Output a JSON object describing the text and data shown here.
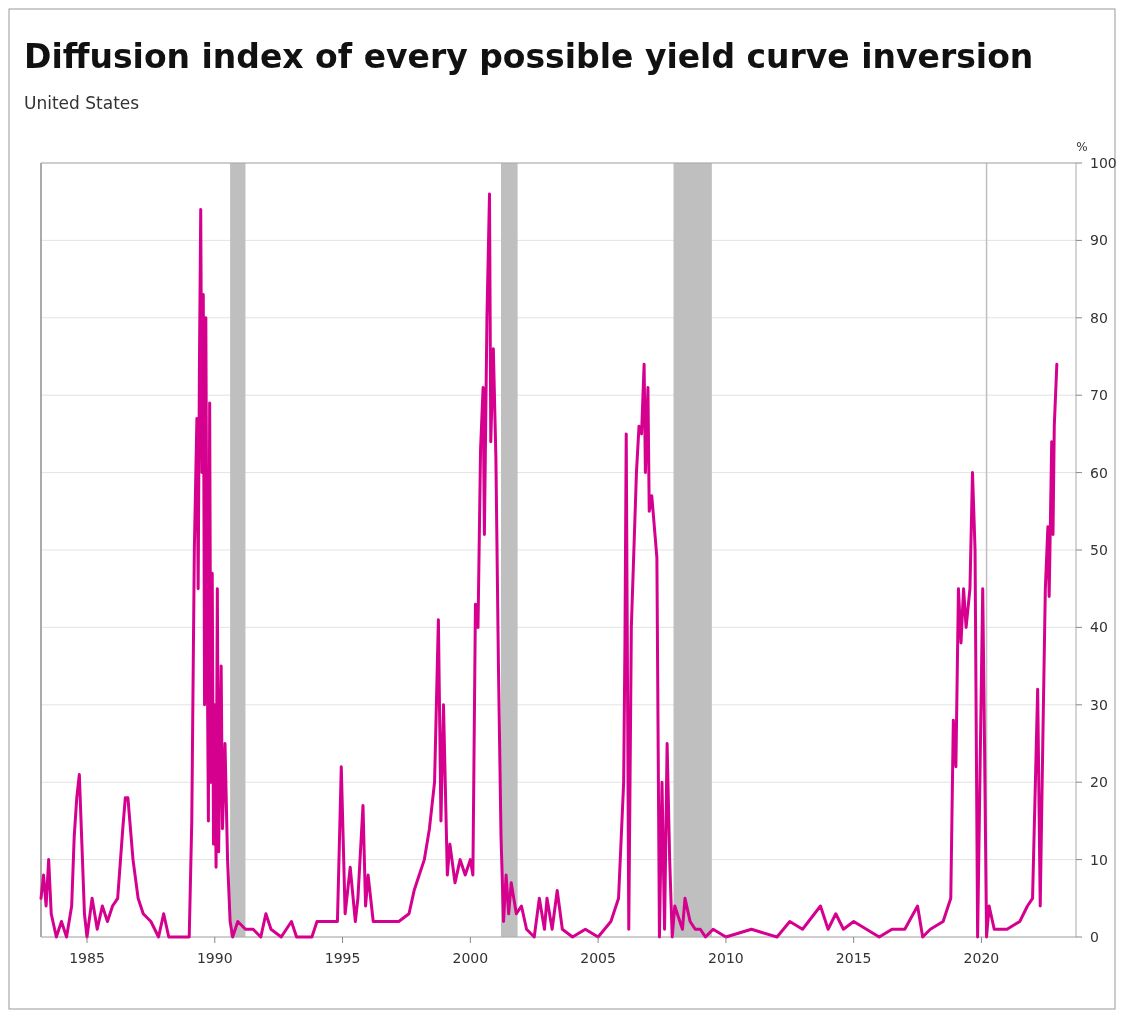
{
  "chart_data": {
    "type": "line",
    "title": "Diffusion index of every possible yield curve inversion",
    "subtitle": "United States",
    "ylabel": "%",
    "xlim": [
      1983.2,
      2023.7
    ],
    "xticks": [
      1985,
      1990,
      1995,
      2000,
      2005,
      2010,
      2015,
      2020
    ],
    "ylim": [
      0,
      100
    ],
    "yticks": [
      0,
      10,
      20,
      30,
      40,
      50,
      60,
      70,
      80,
      90,
      100
    ],
    "grid": "y",
    "bands": [
      {
        "axis": "x",
        "from": 1990.6,
        "to": 1991.2,
        "color": "#bfbfbf"
      },
      {
        "axis": "x",
        "from": 2001.2,
        "to": 2001.85,
        "color": "#bfbfbf"
      },
      {
        "axis": "x",
        "from": 2007.95,
        "to": 2009.45,
        "color": "#bfbfbf"
      }
    ],
    "ref_lines": [
      {
        "axis": "x",
        "value": 2020.2,
        "color": "#bfbfbf"
      }
    ],
    "series": [
      {
        "color": "#d6008f",
        "x": [
          1983.2,
          1983.3,
          1983.4,
          1983.5,
          1983.6,
          1983.8,
          1984.0,
          1984.2,
          1984.4,
          1984.5,
          1984.6,
          1984.7,
          1984.8,
          1984.9,
          1985.0,
          1985.2,
          1985.4,
          1985.6,
          1985.8,
          1986.0,
          1986.2,
          1986.4,
          1986.5,
          1986.6,
          1986.8,
          1987.0,
          1987.2,
          1987.5,
          1987.8,
          1988.0,
          1988.2,
          1989.0,
          1989.1,
          1989.2,
          1989.3,
          1989.35,
          1989.4,
          1989.45,
          1989.5,
          1989.55,
          1989.6,
          1989.65,
          1989.7,
          1989.75,
          1989.8,
          1989.85,
          1989.9,
          1989.95,
          1990.0,
          1990.05,
          1990.1,
          1990.15,
          1990.25,
          1990.3,
          1990.4,
          1990.5,
          1990.6,
          1990.7,
          1990.9,
          1991.2,
          1991.5,
          1991.8,
          1992.0,
          1992.2,
          1992.6,
          1993.0,
          1993.2,
          1993.8,
          1994.0,
          1994.8,
          1994.95,
          1995.1,
          1995.3,
          1995.5,
          1995.6,
          1995.8,
          1995.9,
          1996.0,
          1996.2,
          1996.8,
          1997.2,
          1997.6,
          1997.8,
          1998.0,
          1998.2,
          1998.4,
          1998.6,
          1998.75,
          1998.85,
          1998.95,
          1999.1,
          1999.2,
          1999.4,
          1999.6,
          1999.8,
          2000.0,
          2000.1,
          2000.2,
          2000.3,
          2000.4,
          2000.5,
          2000.55,
          2000.65,
          2000.75,
          2000.8,
          2000.9,
          2001.0,
          2001.1,
          2001.2,
          2001.3,
          2001.4,
          2001.5,
          2001.6,
          2001.8,
          2002.0,
          2002.2,
          2002.5,
          2002.7,
          2002.9,
          2003.0,
          2003.2,
          2003.4,
          2003.6,
          2004.0,
          2004.5,
          2005.0,
          2005.5,
          2005.8,
          2006.0,
          2006.05,
          2006.1,
          2006.2,
          2006.3,
          2006.5,
          2006.6,
          2006.7,
          2006.8,
          2006.85,
          2006.95,
          2007.0,
          2007.1,
          2007.3,
          2007.4,
          2007.5,
          2007.6,
          2007.7,
          2007.8,
          2007.9,
          2008.0,
          2008.3,
          2008.4,
          2008.6,
          2008.8,
          2009.0,
          2009.2,
          2009.5,
          2010.0,
          2011.0,
          2012.0,
          2012.5,
          2013.0,
          2013.7,
          2014.0,
          2014.3,
          2014.6,
          2015.0,
          2015.5,
          2016.0,
          2016.5,
          2017.0,
          2017.5,
          2017.7,
          2018.0,
          2018.5,
          2018.8,
          2018.9,
          2019.0,
          2019.1,
          2019.2,
          2019.3,
          2019.4,
          2019.55,
          2019.65,
          2019.75,
          2019.85,
          2020.05,
          2020.12,
          2020.2,
          2020.3,
          2020.5,
          2021.0,
          2021.5,
          2021.8,
          2022.0,
          2022.2,
          2022.3,
          2022.4,
          2022.5,
          2022.6,
          2022.65,
          2022.75,
          2022.8,
          2022.85,
          2022.95
        ],
        "values": [
          5,
          8,
          4,
          10,
          3,
          0,
          2,
          0,
          4,
          13,
          18,
          21,
          12,
          3,
          0,
          5,
          1,
          4,
          2,
          4,
          5,
          14,
          18,
          18,
          10,
          5,
          3,
          2,
          0,
          3,
          0,
          0,
          15,
          50,
          67,
          45,
          74,
          94,
          60,
          83,
          30,
          80,
          40,
          15,
          69,
          20,
          47,
          12,
          30,
          9,
          45,
          11,
          35,
          14,
          25,
          10,
          2,
          0,
          2,
          1,
          1,
          0,
          3,
          1,
          0,
          2,
          0,
          0,
          2,
          2,
          22,
          3,
          9,
          2,
          5,
          17,
          4,
          8,
          2,
          2,
          2,
          3,
          6,
          8,
          10,
          14,
          20,
          41,
          15,
          30,
          8,
          12,
          7,
          10,
          8,
          10,
          8,
          43,
          40,
          63,
          71,
          52,
          80,
          96,
          64,
          76,
          62,
          35,
          13,
          2,
          8,
          3,
          7,
          3,
          4,
          1,
          0,
          5,
          1,
          5,
          1,
          6,
          1,
          0,
          1,
          0,
          2,
          5,
          20,
          38,
          65,
          1,
          40,
          60,
          66,
          65,
          74,
          60,
          71,
          55,
          57,
          49,
          0,
          20,
          1,
          25,
          10,
          0,
          4,
          1,
          5,
          2,
          1,
          1,
          0,
          1,
          0,
          1,
          0,
          2,
          1,
          4,
          1,
          3,
          1,
          2,
          1,
          0,
          1,
          1,
          4,
          0,
          1,
          2,
          5,
          28,
          22,
          45,
          38,
          45,
          40,
          45,
          60,
          50,
          0,
          45,
          25,
          0,
          4,
          1,
          1,
          2,
          4,
          5,
          32,
          4,
          25,
          45,
          53,
          44,
          64,
          52,
          66,
          74
        ]
      }
    ]
  }
}
